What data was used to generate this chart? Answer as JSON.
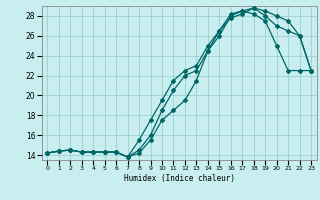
{
  "title": "",
  "xlabel": "Humidex (Indice chaleur)",
  "ylabel": "",
  "bg_color": "#c8eef0",
  "grid_color": "#9ecece",
  "line_color": "#006666",
  "xlim": [
    -0.5,
    23.5
  ],
  "ylim": [
    13.5,
    29.0
  ],
  "xticks": [
    0,
    1,
    2,
    3,
    4,
    5,
    6,
    7,
    8,
    9,
    10,
    11,
    12,
    13,
    14,
    15,
    16,
    17,
    18,
    19,
    20,
    21,
    22,
    23
  ],
  "yticks": [
    14,
    16,
    18,
    20,
    22,
    24,
    26,
    28
  ],
  "line1_x": [
    0,
    1,
    2,
    3,
    4,
    5,
    6,
    7,
    8,
    9,
    10,
    11,
    12,
    13,
    14,
    15,
    16,
    17,
    18,
    19,
    20,
    21,
    22,
    23
  ],
  "line1_y": [
    14.2,
    14.4,
    14.5,
    14.3,
    14.3,
    14.3,
    14.3,
    13.8,
    14.2,
    15.5,
    17.5,
    18.5,
    19.5,
    21.5,
    24.5,
    26.0,
    28.0,
    28.5,
    28.2,
    27.5,
    25.0,
    22.5,
    22.5,
    22.5
  ],
  "line2_x": [
    0,
    1,
    2,
    3,
    4,
    5,
    6,
    7,
    8,
    9,
    10,
    11,
    12,
    13,
    14,
    15,
    16,
    17,
    18,
    19,
    20,
    21,
    22,
    23
  ],
  "line2_y": [
    14.2,
    14.4,
    14.5,
    14.3,
    14.3,
    14.3,
    14.3,
    13.8,
    14.5,
    16.0,
    18.5,
    20.5,
    22.0,
    22.5,
    24.5,
    26.5,
    27.8,
    28.2,
    28.8,
    28.5,
    28.0,
    27.5,
    26.0,
    22.5
  ],
  "line3_x": [
    0,
    1,
    2,
    3,
    4,
    5,
    6,
    7,
    8,
    9,
    10,
    11,
    12,
    13,
    14,
    15,
    16,
    17,
    18,
    19,
    20,
    21,
    22,
    23
  ],
  "line3_y": [
    14.2,
    14.4,
    14.5,
    14.3,
    14.3,
    14.3,
    14.3,
    13.8,
    15.5,
    17.5,
    19.5,
    21.5,
    22.5,
    23.0,
    25.0,
    26.5,
    28.2,
    28.5,
    28.8,
    28.0,
    27.0,
    26.5,
    26.0,
    22.5
  ]
}
